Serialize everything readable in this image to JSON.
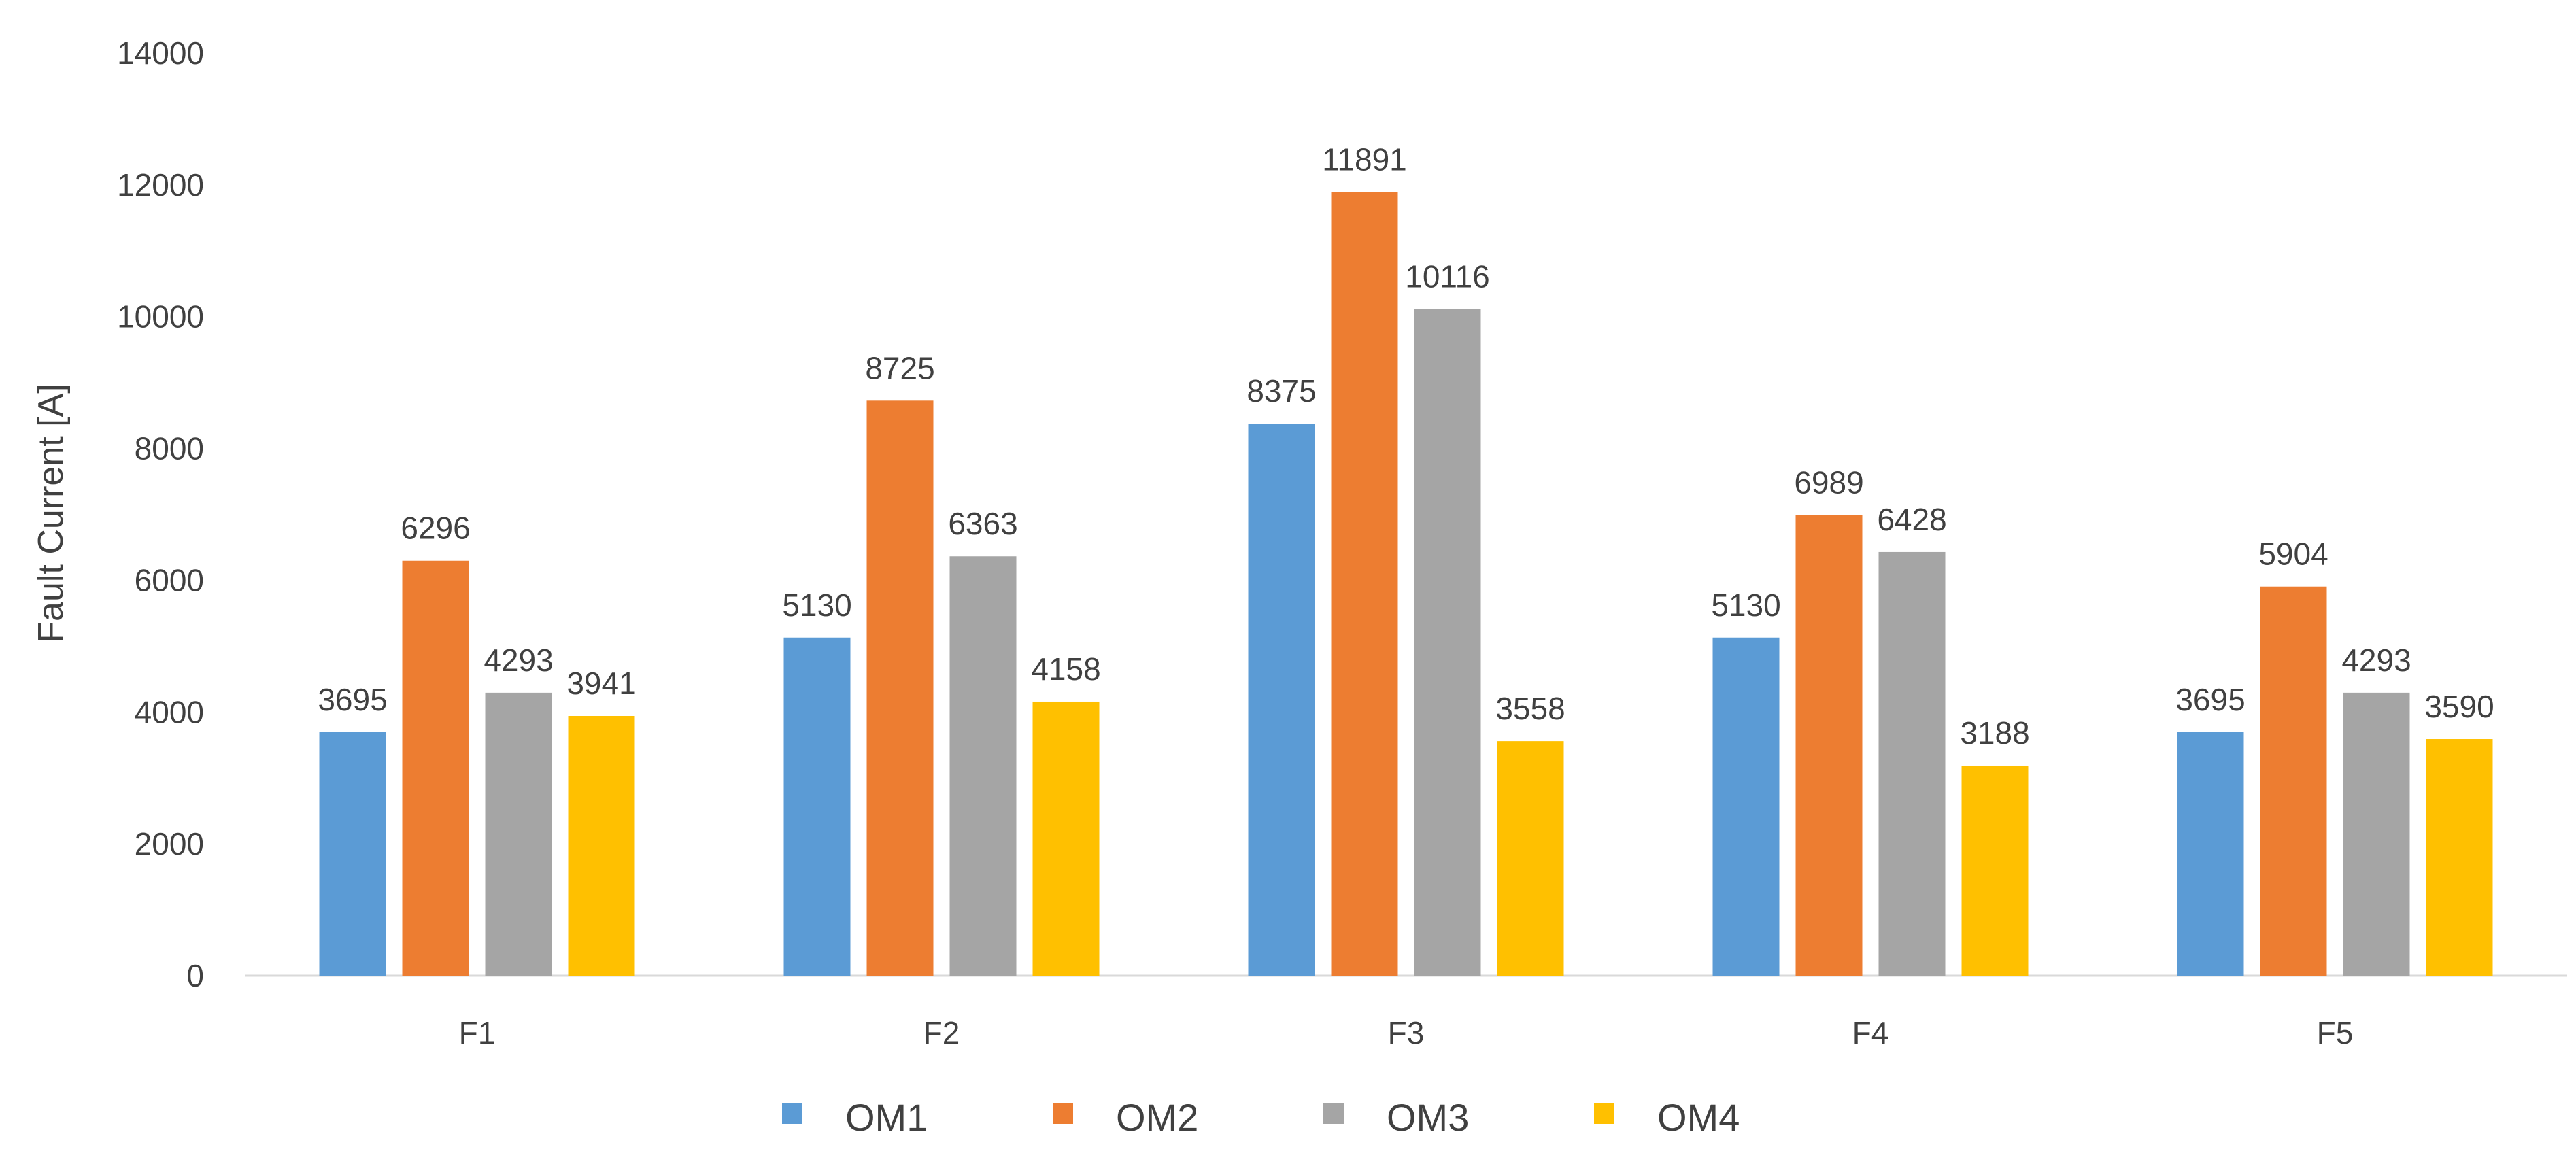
{
  "chart_data": {
    "type": "bar",
    "title": "",
    "xlabel": "",
    "ylabel": "Fault Current [A]",
    "ylim": [
      0,
      14000
    ],
    "yticks": [
      0,
      2000,
      4000,
      6000,
      8000,
      10000,
      12000,
      14000
    ],
    "grid": false,
    "legend_position": "bottom",
    "categories": [
      "F1",
      "F2",
      "F3",
      "F4",
      "F5"
    ],
    "series": [
      {
        "name": "OM1",
        "color": "#5B9BD5",
        "values": [
          3695,
          5130,
          8375,
          5130,
          3695
        ]
      },
      {
        "name": "OM2",
        "color": "#ED7D31",
        "values": [
          6296,
          8725,
          11891,
          6989,
          5904
        ]
      },
      {
        "name": "OM3",
        "color": "#A5A5A5",
        "values": [
          4293,
          6363,
          10116,
          6428,
          4293
        ]
      },
      {
        "name": "OM4",
        "color": "#FFC000",
        "values": [
          3941,
          4158,
          3558,
          3188,
          3590
        ]
      }
    ]
  }
}
